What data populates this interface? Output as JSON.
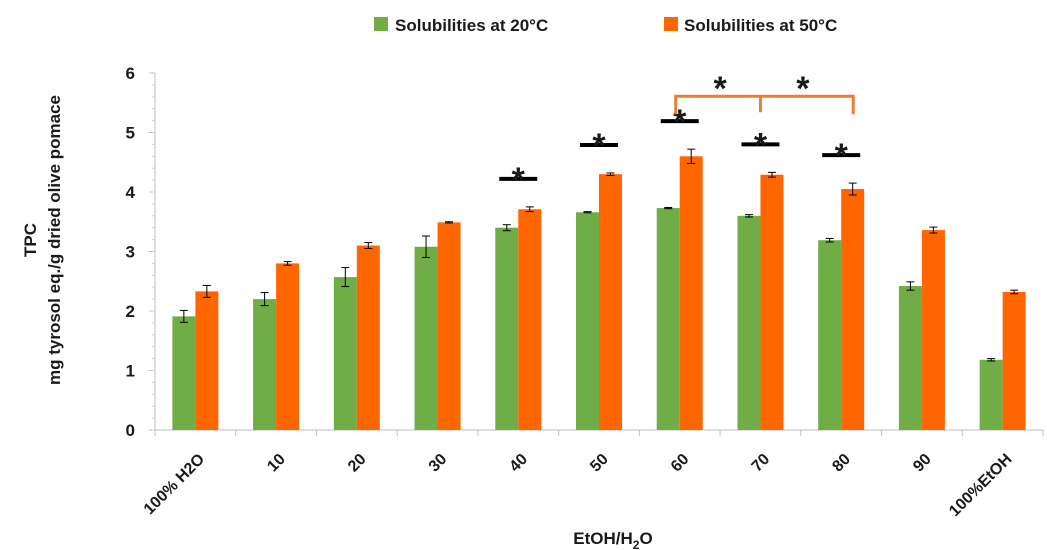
{
  "chart_data": {
    "type": "bar",
    "categories": [
      "100% H2O",
      "10",
      "20",
      "30",
      "40",
      "50",
      "60",
      "70",
      "80",
      "90",
      "100%EtOH"
    ],
    "series": [
      {
        "name": "Solubilities at 20°C",
        "color": "#70AD47",
        "values": [
          1.91,
          2.2,
          2.57,
          3.08,
          3.4,
          3.66,
          3.73,
          3.6,
          3.19,
          2.42,
          1.18
        ],
        "errors": [
          0.1,
          0.11,
          0.16,
          0.18,
          0.05,
          0.01,
          0.01,
          0.02,
          0.03,
          0.07,
          0.02
        ]
      },
      {
        "name": "Solubilities at 50°C",
        "color": "#FF6600",
        "values": [
          2.33,
          2.8,
          3.1,
          3.49,
          3.71,
          4.3,
          4.6,
          4.29,
          4.05,
          3.36,
          2.32
        ],
        "errors": [
          0.1,
          0.03,
          0.05,
          0.01,
          0.04,
          0.02,
          0.12,
          0.04,
          0.1,
          0.05,
          0.03
        ]
      }
    ],
    "xlabel_main": "EtOH/H",
    "xlabel_sub": "2",
    "xlabel_tail": "O",
    "ylabel_line1": "TPC",
    "ylabel_line2": "mg tyrosol eq./g dried olive pomace",
    "ylim": [
      0,
      6
    ],
    "yticks": [
      "0",
      "1",
      "2",
      "3",
      "4",
      "5",
      "6"
    ],
    "grid": false,
    "legend_position": "top-center",
    "annotations": {
      "black_star_categories": [
        "40",
        "50",
        "60",
        "70",
        "80"
      ],
      "orange_bracket_categories": [
        "60",
        "70",
        "80"
      ],
      "star_symbol": "*",
      "black_color": "#000000",
      "orange_color": "#ED7D31"
    }
  }
}
